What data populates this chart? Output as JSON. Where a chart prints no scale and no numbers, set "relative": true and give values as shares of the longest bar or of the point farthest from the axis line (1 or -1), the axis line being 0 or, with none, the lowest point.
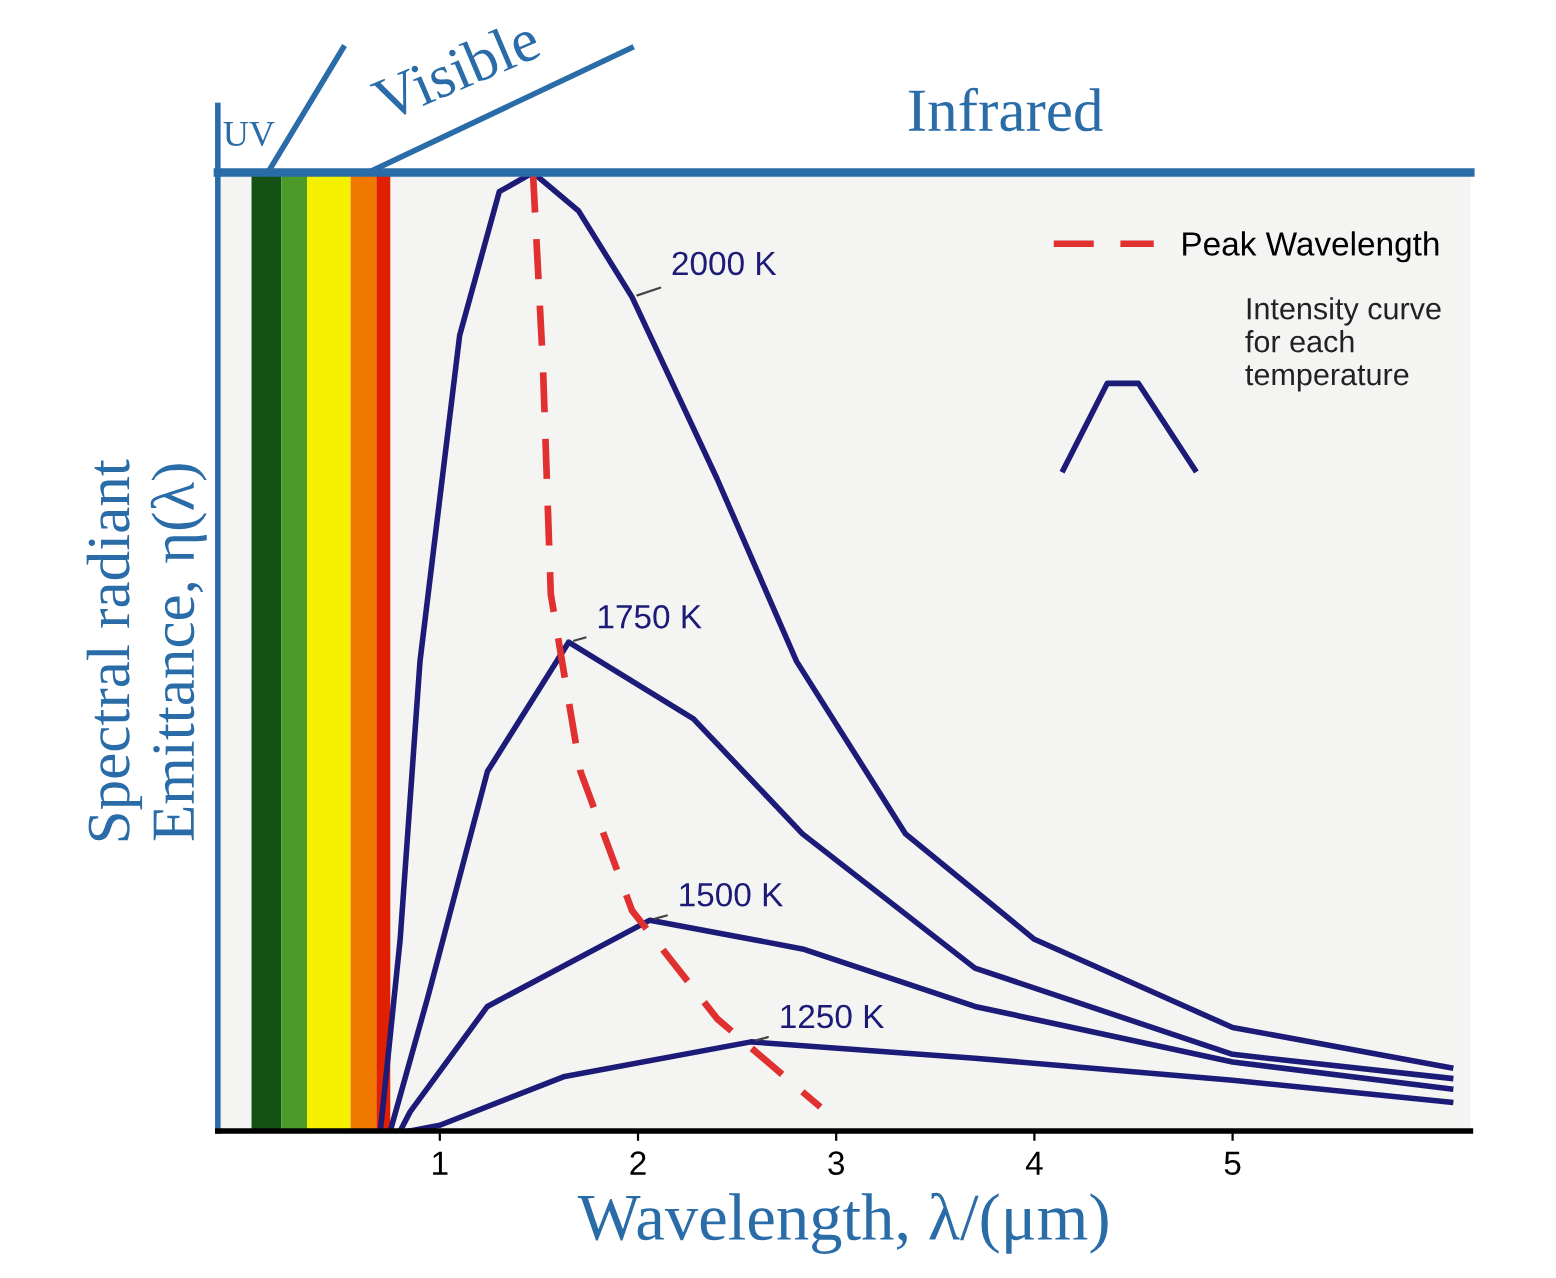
{
  "chart_data": {
    "type": "line",
    "relative": true,
    "xlabel": "Wavelength, λ/(μm)",
    "ylabel": "Spectral radiant\nEmittance, η(λ)",
    "xlim": [
      -0.12,
      6.2
    ],
    "xticks": [
      1,
      2,
      3,
      4,
      5
    ],
    "tick_labels": "x",
    "grid": false,
    "legend": "top right",
    "marker": "none",
    "series": [
      {
        "name": "2000 K",
        "color": "#1c1c78",
        "line_style": "solid",
        "x": [
          0.7,
          0.8,
          0.9,
          1.1,
          1.3,
          1.47,
          1.7,
          1.97,
          2.4,
          2.8,
          3.35,
          4.0,
          5.0,
          6.1
        ],
        "values": [
          0,
          0.2,
          0.49,
          0.83,
          0.98,
          1,
          0.96,
          0.87,
          0.68,
          0.49,
          0.31,
          0.2,
          0.108,
          0.066
        ]
      },
      {
        "name": "1750 K",
        "color": "#1c1c78",
        "line_style": "solid",
        "x": [
          0.75,
          0.94,
          1.24,
          1.65,
          2.28,
          2.83,
          3.7,
          5.0,
          6.1
        ],
        "values": [
          0,
          0.14,
          0.375,
          0.51,
          0.43,
          0.31,
          0.17,
          0.08,
          0.055
        ]
      },
      {
        "name": "1500 K",
        "color": "#1c1c78",
        "line_style": "solid",
        "x": [
          0.8,
          0.85,
          1.24,
          2.06,
          2.83,
          3.7,
          5.0,
          6.1
        ],
        "values": [
          0,
          0.02,
          0.13,
          0.22,
          0.19,
          0.13,
          0.072,
          0.044
        ]
      },
      {
        "name": "1250 K",
        "color": "#1c1c78",
        "line_style": "solid",
        "x": [
          0.85,
          1.0,
          1.63,
          2.57,
          3.7,
          5.0,
          6.1
        ],
        "values": [
          0,
          0.006,
          0.057,
          0.093,
          0.076,
          0.053,
          0.03
        ]
      },
      {
        "name": "Peak Wavelength",
        "color": "#e03030",
        "line_style": "dashed",
        "x": [
          1.47,
          1.52,
          1.56,
          1.71,
          1.97,
          2.4,
          2.92
        ],
        "values": [
          1,
          0.8,
          0.56,
          0.375,
          0.23,
          0.117,
          0.025
        ]
      }
    ],
    "bands": [
      {
        "axis": "x",
        "from": 0.05,
        "to": 0.2,
        "color": "#145214"
      },
      {
        "axis": "x",
        "from": 0.2,
        "to": 0.33,
        "color": "#4c9a2a"
      },
      {
        "axis": "x",
        "from": 0.33,
        "to": 0.55,
        "color": "#f5f000"
      },
      {
        "axis": "x",
        "from": 0.55,
        "to": 0.68,
        "color": "#f07800"
      },
      {
        "axis": "x",
        "from": 0.68,
        "to": 0.75,
        "color": "#e02000"
      }
    ],
    "annotations": [
      "UV",
      "Visible",
      "Infrared",
      "Intensity curve\nfor each\ntemperature"
    ]
  }
}
